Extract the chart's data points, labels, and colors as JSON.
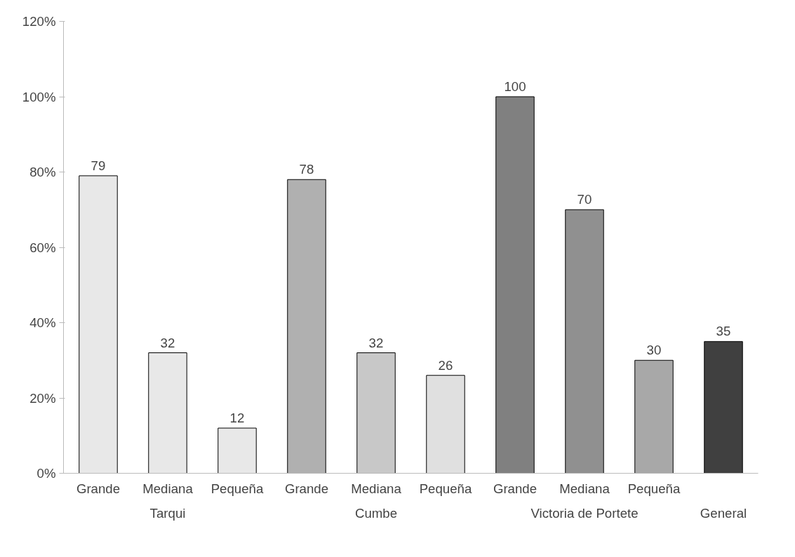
{
  "chart_data": {
    "type": "bar",
    "categories": [
      "Grande",
      "Mediana",
      "Pequeña",
      "Grande",
      "Mediana",
      "Pequeña",
      "Grande",
      "Mediana",
      "Pequeña",
      null
    ],
    "values": [
      79,
      32,
      12,
      78,
      32,
      26,
      100,
      70,
      30,
      35
    ],
    "colors": [
      "#e8e8e8",
      "#e8e8e8",
      "#e8e8e8",
      "#b0b0b0",
      "#c8c8c8",
      "#e0e0e0",
      "#808080",
      "#909090",
      "#a8a8a8",
      "#404040"
    ],
    "ylim": [
      0,
      120
    ],
    "yticks": [
      {
        "value": 0,
        "label": "0%"
      },
      {
        "value": 20,
        "label": "20%"
      },
      {
        "value": 40,
        "label": "40%"
      },
      {
        "value": 60,
        "label": "60%"
      },
      {
        "value": 80,
        "label": "80%"
      },
      {
        "value": 100,
        "label": "100%"
      },
      {
        "value": 120,
        "label": "120%"
      }
    ],
    "data_labels": true,
    "grid": false,
    "annotations": [
      "Tarqui",
      "Cumbe",
      "Victoria de Portete",
      "General"
    ]
  }
}
